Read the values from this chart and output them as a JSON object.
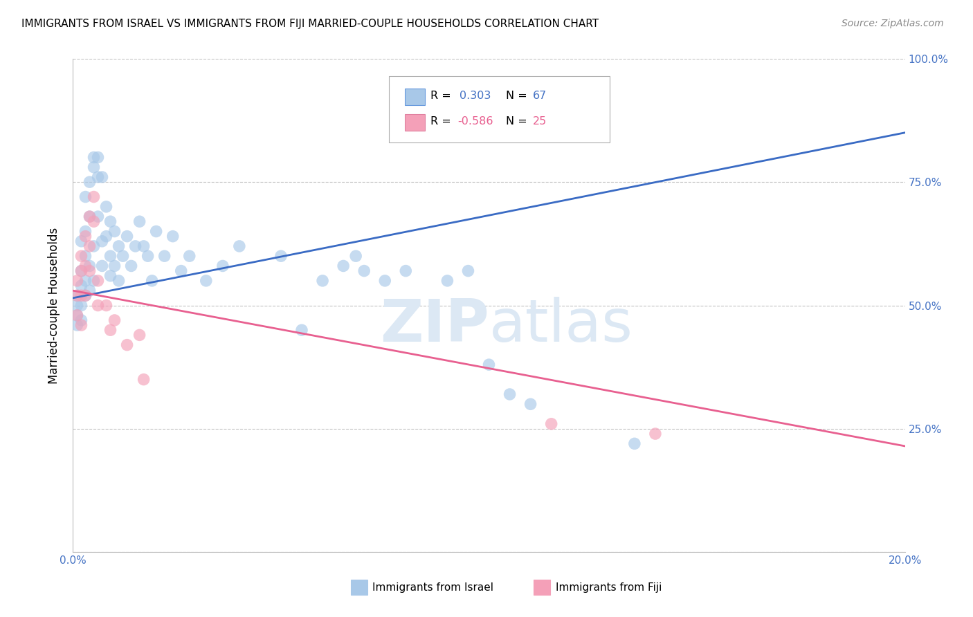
{
  "title": "IMMIGRANTS FROM ISRAEL VS IMMIGRANTS FROM FIJI MARRIED-COUPLE HOUSEHOLDS CORRELATION CHART",
  "source": "Source: ZipAtlas.com",
  "ylabel": "Married-couple Households",
  "xlim": [
    0.0,
    0.2
  ],
  "ylim": [
    0.0,
    1.0
  ],
  "israel_color": "#A8C8E8",
  "fiji_color": "#F4A0B8",
  "israel_line_color": "#3A6BC4",
  "fiji_line_color": "#E86090",
  "watermark_color": "#DCE8F4",
  "israel_trendline_x": [
    0.0,
    0.2
  ],
  "israel_trendline_y": [
    0.515,
    0.85
  ],
  "fiji_trendline_x": [
    0.0,
    0.2
  ],
  "fiji_trendline_y": [
    0.53,
    0.215
  ],
  "israel_x": [
    0.001,
    0.001,
    0.001,
    0.001,
    0.002,
    0.002,
    0.002,
    0.002,
    0.002,
    0.003,
    0.003,
    0.003,
    0.003,
    0.003,
    0.004,
    0.004,
    0.004,
    0.004,
    0.005,
    0.005,
    0.005,
    0.005,
    0.006,
    0.006,
    0.006,
    0.007,
    0.007,
    0.007,
    0.008,
    0.008,
    0.009,
    0.009,
    0.009,
    0.01,
    0.01,
    0.011,
    0.011,
    0.012,
    0.013,
    0.014,
    0.015,
    0.016,
    0.017,
    0.018,
    0.019,
    0.02,
    0.022,
    0.024,
    0.026,
    0.028,
    0.032,
    0.036,
    0.04,
    0.05,
    0.055,
    0.06,
    0.065,
    0.068,
    0.07,
    0.075,
    0.08,
    0.09,
    0.095,
    0.1,
    0.105,
    0.11,
    0.135
  ],
  "israel_y": [
    0.5,
    0.52,
    0.48,
    0.46,
    0.54,
    0.57,
    0.5,
    0.63,
    0.47,
    0.6,
    0.55,
    0.52,
    0.65,
    0.72,
    0.68,
    0.75,
    0.58,
    0.53,
    0.78,
    0.8,
    0.62,
    0.55,
    0.76,
    0.8,
    0.68,
    0.76,
    0.63,
    0.58,
    0.7,
    0.64,
    0.67,
    0.6,
    0.56,
    0.65,
    0.58,
    0.62,
    0.55,
    0.6,
    0.64,
    0.58,
    0.62,
    0.67,
    0.62,
    0.6,
    0.55,
    0.65,
    0.6,
    0.64,
    0.57,
    0.6,
    0.55,
    0.58,
    0.62,
    0.6,
    0.45,
    0.55,
    0.58,
    0.6,
    0.57,
    0.55,
    0.57,
    0.55,
    0.57,
    0.38,
    0.32,
    0.3,
    0.22
  ],
  "fiji_x": [
    0.001,
    0.001,
    0.001,
    0.002,
    0.002,
    0.002,
    0.002,
    0.003,
    0.003,
    0.003,
    0.004,
    0.004,
    0.004,
    0.005,
    0.005,
    0.006,
    0.006,
    0.008,
    0.009,
    0.01,
    0.013,
    0.016,
    0.017,
    0.115,
    0.14
  ],
  "fiji_y": [
    0.52,
    0.55,
    0.48,
    0.6,
    0.57,
    0.52,
    0.46,
    0.64,
    0.58,
    0.52,
    0.68,
    0.62,
    0.57,
    0.67,
    0.72,
    0.55,
    0.5,
    0.5,
    0.45,
    0.47,
    0.42,
    0.44,
    0.35,
    0.26,
    0.24
  ]
}
